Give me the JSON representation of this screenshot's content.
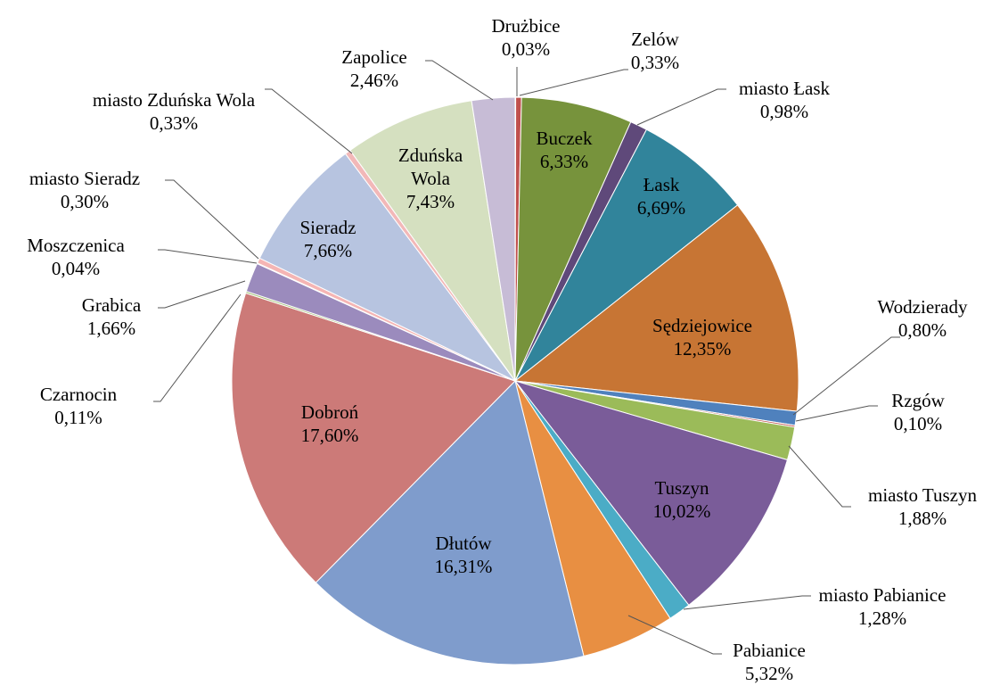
{
  "chart_data": {
    "type": "pie",
    "categories": [
      "Drużbice",
      "Zelów",
      "Buczek",
      "miasto Łask",
      "Łask",
      "Sędziejowice",
      "Wodzierady",
      "Rzgów",
      "miasto Tuszyn",
      "Tuszyn",
      "miasto Pabianice",
      "Pabianice",
      "Dłutów",
      "Dobroń",
      "Czarnocin",
      "Grabica",
      "Moszczenica",
      "miasto Sieradz",
      "Sieradz",
      "miasto Zduńska Wola",
      "Zduńska Wola",
      "Zapolice"
    ],
    "values": [
      0.03,
      0.33,
      6.33,
      0.98,
      6.69,
      12.35,
      0.8,
      0.1,
      1.88,
      10.02,
      1.28,
      5.32,
      16.31,
      17.6,
      0.11,
      1.66,
      0.04,
      0.3,
      7.66,
      0.33,
      7.43,
      2.46
    ],
    "value_labels": [
      "0,03%",
      "0,33%",
      "6,33%",
      "0,98%",
      "6,69%",
      "12,35%",
      "0,80%",
      "0,10%",
      "1,88%",
      "10,02%",
      "1,28%",
      "5,32%",
      "16,31%",
      "17,60%",
      "0,11%",
      "1,66%",
      "0,04%",
      "0,30%",
      "7,66%",
      "0,33%",
      "7,43%",
      "2,46%"
    ],
    "colors": [
      "#a0362f",
      "#c0504d",
      "#77933c",
      "#5f497a",
      "#31849b",
      "#c77534",
      "#4f81bd",
      "#c0504d",
      "#9bbb59",
      "#7a5c99",
      "#4bacc6",
      "#e88f42",
      "#7f9ccc",
      "#cc7a78",
      "#a5c27a",
      "#9b8bbd",
      "#f8a55a",
      "#f5b5b4",
      "#b7c4e0",
      "#f2b8b8",
      "#d5e0c0",
      "#c7bcd6"
    ]
  }
}
